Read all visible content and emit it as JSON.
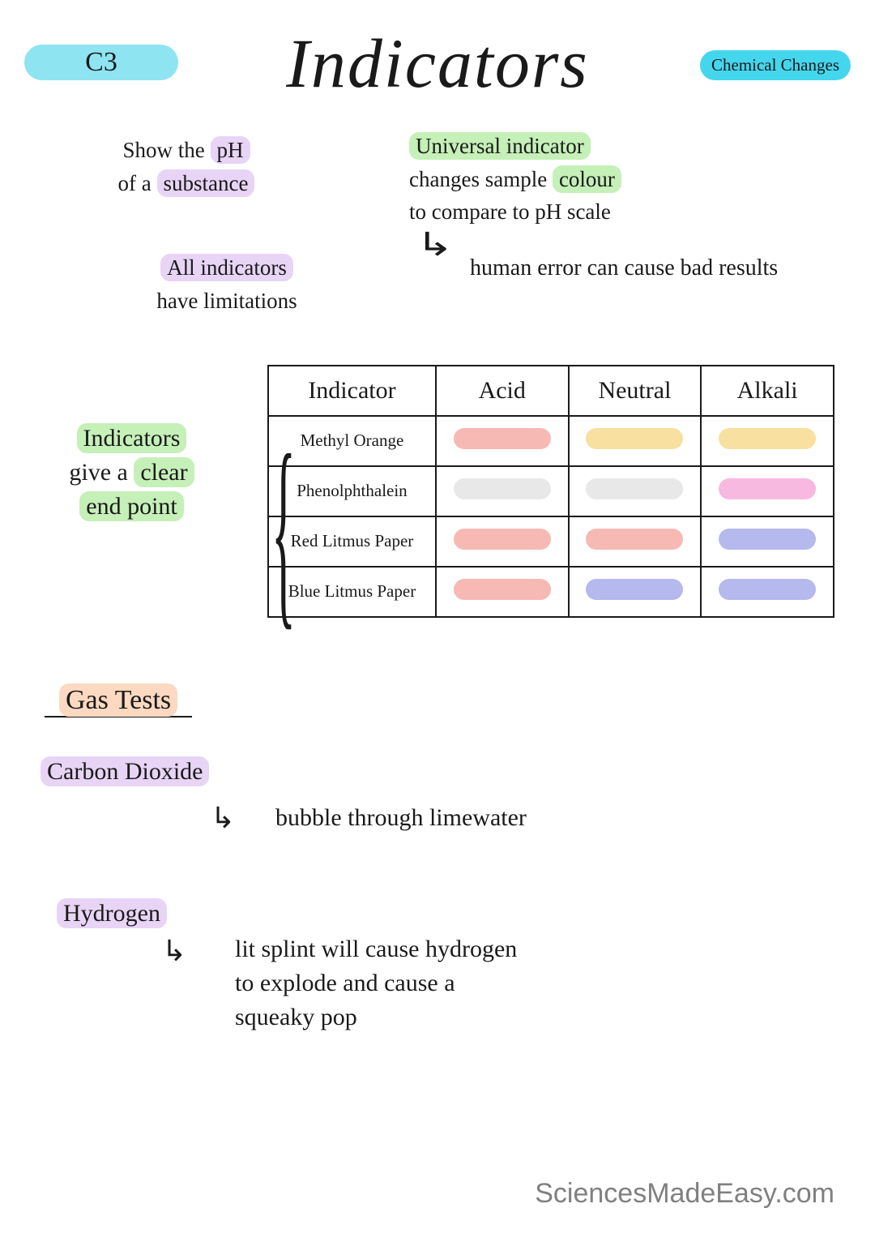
{
  "colors": {
    "hl_cyan": "#8fe4f2",
    "hl_cyan_dark": "#44d6ed",
    "hl_lilac": "#e8d4f5",
    "hl_green": "#c5f0b8",
    "hl_peach": "#fcd9c0",
    "sw_red": "#f6b9b3",
    "sw_yellow": "#f7e0a0",
    "sw_grey": "#e8e8e8",
    "sw_pink": "#f7b9e0",
    "sw_blue": "#b5b9ed"
  },
  "badge_left": "C3",
  "badge_right": "Chemical Changes",
  "title": "Indicators",
  "note1": {
    "pre": "Show the ",
    "hl1": "pH",
    "mid": "of a ",
    "hl2": "substance"
  },
  "note2": {
    "line1_hl": "Universal indicator",
    "line2a": "changes sample ",
    "line2b": "colour",
    "line3": "to compare to pH scale"
  },
  "note3": {
    "hl": "All indicators",
    "line2": "have limitations"
  },
  "note4": "human error can cause bad results",
  "table": {
    "headers": [
      "Indicator",
      "Acid",
      "Neutral",
      "Alkali"
    ],
    "rows": [
      {
        "label": "Methyl Orange",
        "acid": "#f6b9b3",
        "neutral": "#f7e0a0",
        "alkali": "#f7e0a0"
      },
      {
        "label": "Phenolphthalein",
        "acid": "#e8e8e8",
        "neutral": "#e8e8e8",
        "alkali": "#f7b9e0"
      },
      {
        "label": "Red Litmus Paper",
        "acid": "#f6b9b3",
        "neutral": "#f6b9b3",
        "alkali": "#b5b9ed"
      },
      {
        "label": "Blue Litmus Paper",
        "acid": "#f6b9b3",
        "neutral": "#b5b9ed",
        "alkali": "#b5b9ed"
      }
    ]
  },
  "sidelabel": {
    "hl1": "Indicators",
    "mid": "give a ",
    "hl2": "clear",
    "hl3": "end point"
  },
  "gastests": "Gas Tests",
  "co2": {
    "label": "Carbon Dioxide",
    "text": "bubble through limewater"
  },
  "h2": {
    "label": "Hydrogen",
    "text": "lit splint will cause hydrogen to explode and cause a squeaky pop"
  },
  "watermark": "SciencesMadeEasy.com"
}
